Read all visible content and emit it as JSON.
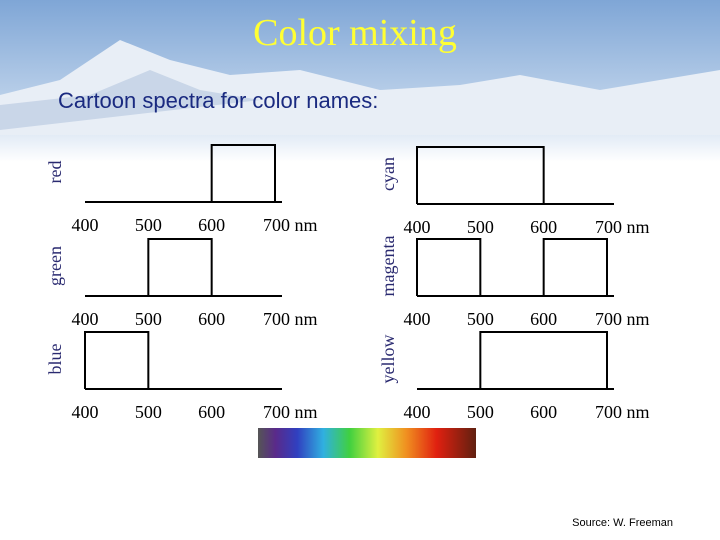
{
  "title": "Color mixing",
  "subtitle": "Cartoon spectra for color names:",
  "xlim": [
    400,
    700
  ],
  "xticks": [
    400,
    500,
    600,
    {
      "value": 700,
      "label": "700 nm"
    }
  ],
  "spectra": [
    {
      "name": "red",
      "bands": [
        [
          600,
          700
        ]
      ]
    },
    {
      "name": "green",
      "bands": [
        [
          500,
          600
        ]
      ]
    },
    {
      "name": "blue",
      "bands": [
        [
          400,
          500
        ]
      ]
    },
    {
      "name": "cyan",
      "bands": [
        [
          400,
          600
        ]
      ]
    },
    {
      "name": "magenta",
      "bands": [
        [
          400,
          500
        ],
        [
          600,
          700
        ]
      ]
    },
    {
      "name": "yellow",
      "bands": [
        [
          500,
          700
        ]
      ]
    }
  ],
  "source": "Source: W. Freeman"
}
